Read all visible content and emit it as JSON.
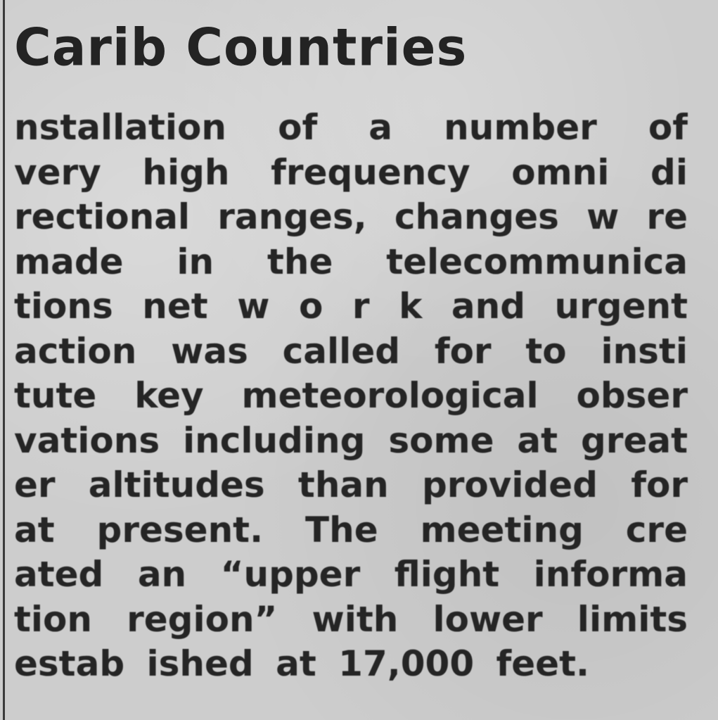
{
  "article": {
    "heading": "Carib Countries",
    "lines": [
      "nstallation of a number of",
      "very high frequency omni di",
      "rectional ranges, changes w re",
      "made in the telecommunica",
      "tions net w o r k and urgent",
      "action was called for to insti",
      "tute key meteorological obser",
      "vations including some at great",
      "er altitudes than provided for",
      "at present. The meeting cre",
      "ated an “upper flight informa",
      "tion region” with lower limits",
      "estab ished at 17,000 feet."
    ]
  }
}
